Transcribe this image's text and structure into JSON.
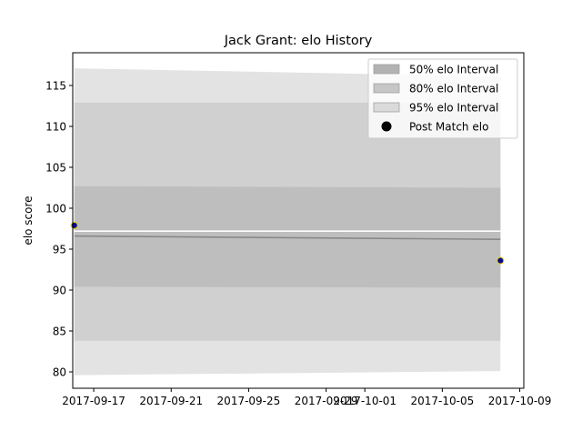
{
  "chart_data": {
    "type": "area",
    "title": "Jack Grant: elo History",
    "xlabel": "",
    "ylabel": "elo score",
    "xlim": [
      "2017-09-15T22:00",
      "2017-10-09T05:00"
    ],
    "ylim": [
      78,
      119
    ],
    "x_ticks": [
      "2017-09-17",
      "2017-09-21",
      "2017-09-25",
      "2017-09-29",
      "2017-10-01",
      "2017-10-05",
      "2017-10-09"
    ],
    "x_tick_dates": [
      "2017-09-17",
      "2017-09-21",
      "2017-09-25",
      "2017-09-29",
      "2017-10-01",
      "2017-10-05",
      "2017-10-09"
    ],
    "y_ticks": [
      80,
      85,
      90,
      95,
      100,
      105,
      110,
      115
    ],
    "grid": false,
    "legend_position": "upper right",
    "legend": [
      {
        "label": "50% elo Interval",
        "kind": "patch",
        "color": "#b2b2b2"
      },
      {
        "label": "80% elo Interval",
        "kind": "patch",
        "color": "#c6c6c6"
      },
      {
        "label": "95% elo Interval",
        "kind": "patch",
        "color": "#dadada"
      },
      {
        "label": "Post Match elo",
        "kind": "marker",
        "color": "#000000"
      }
    ],
    "x_dates": [
      "2017-09-16",
      "2017-10-08"
    ],
    "series": [
      {
        "name": "95% elo Interval",
        "kind": "band",
        "color": "#e3e3e3",
        "lower": [
          79.6,
          80.1
        ],
        "upper": [
          117.1,
          116.1
        ]
      },
      {
        "name": "80% elo Interval",
        "kind": "band",
        "color": "#d0d0d0",
        "lower": [
          83.8,
          83.8
        ],
        "upper": [
          112.9,
          112.9
        ]
      },
      {
        "name": "50% elo Interval",
        "kind": "band",
        "color": "#bebebe",
        "lower": [
          90.4,
          90.3
        ],
        "upper": [
          102.7,
          102.5
        ]
      },
      {
        "kind": "line",
        "color": "#ffffff",
        "values": [
          97.2,
          97.2
        ]
      },
      {
        "kind": "line",
        "color": "#888888",
        "values": [
          96.6,
          96.2
        ]
      },
      {
        "name": "Post Match elo",
        "kind": "points",
        "x": [
          "2017-09-16",
          "2017-10-08"
        ],
        "values": [
          97.9,
          93.6
        ],
        "color": "#0a0a8c",
        "edge": "#e6d31a"
      }
    ]
  }
}
